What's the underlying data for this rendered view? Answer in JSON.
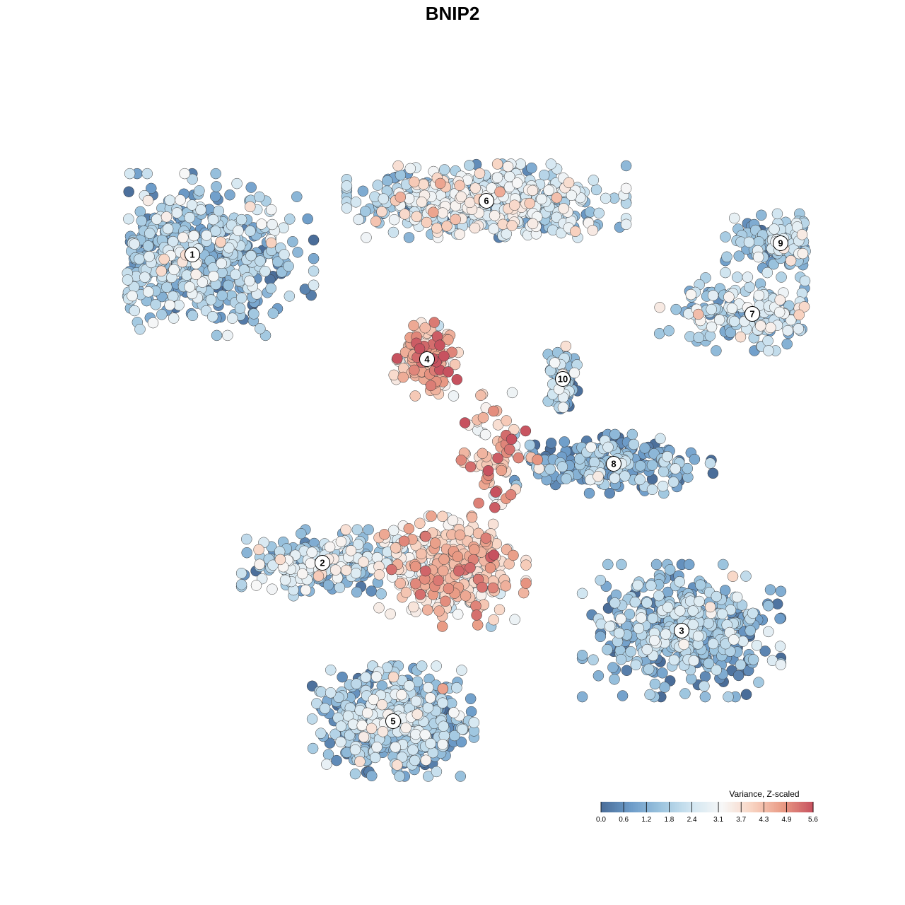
{
  "chart_data": {
    "type": "scatter",
    "title": "BNIP2",
    "xlabel": "",
    "ylabel": "",
    "grid": false,
    "color_scale": {
      "title": "Variance, Z-scaled",
      "ticks": [
        "0.0",
        "0.6",
        "1.2",
        "1.8",
        "2.4",
        "3.1",
        "3.7",
        "4.3",
        "4.9",
        "5.6"
      ],
      "range": [
        0.0,
        5.6
      ],
      "colors": [
        "#4a6d99",
        "#6d9cc9",
        "#9dc5df",
        "#d2e6f1",
        "#f7f7f7",
        "#f8d3c1",
        "#e99a84",
        "#c7525f"
      ],
      "placement": "bottom-right"
    },
    "cluster_labels": [
      "1",
      "2",
      "3",
      "4",
      "5",
      "6",
      "7",
      "8",
      "9",
      "10"
    ],
    "clusters": [
      {
        "label": "1",
        "x": -0.92,
        "y": 0.7,
        "n": 620,
        "mean_value": 1.6
      },
      {
        "label": "2",
        "x": -0.46,
        "y": -0.39,
        "n": 260,
        "mean_value": 1.9
      },
      {
        "label": "3",
        "x": 0.81,
        "y": -0.63,
        "n": 520,
        "mean_value": 1.3
      },
      {
        "label": "4",
        "x": -0.09,
        "y": 0.33,
        "n": 170,
        "mean_value": 4.1
      },
      {
        "label": "5",
        "x": -0.21,
        "y": -0.95,
        "n": 560,
        "mean_value": 1.5
      },
      {
        "label": "6",
        "x": 0.12,
        "y": 0.89,
        "n": 560,
        "mean_value": 2.3
      },
      {
        "label": "7",
        "x": 1.06,
        "y": 0.49,
        "n": 200,
        "mean_value": 2.1
      },
      {
        "label": "8",
        "x": 0.57,
        "y": -0.04,
        "n": 230,
        "mean_value": 1.1
      },
      {
        "label": "9",
        "x": 1.16,
        "y": 0.74,
        "n": 150,
        "mean_value": 1.6
      },
      {
        "label": "10",
        "x": 0.39,
        "y": 0.26,
        "n": 90,
        "mean_value": 1.5
      }
    ],
    "extra_groups": [
      {
        "name": "center-hotspot",
        "x": 0.0,
        "y": -0.42,
        "n": 380,
        "mean_value": 3.6
      },
      {
        "name": "bridge",
        "x": 0.15,
        "y": 0.0,
        "n": 70,
        "mean_value": 4.2
      }
    ]
  }
}
